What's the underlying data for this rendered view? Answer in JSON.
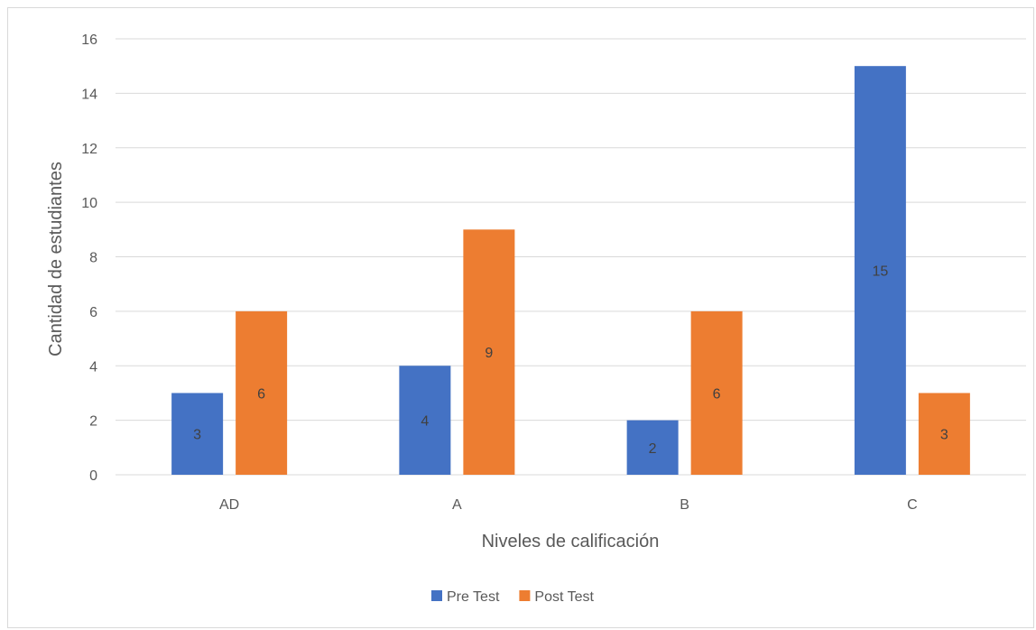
{
  "chart_data": {
    "type": "bar",
    "categories": [
      "AD",
      "A",
      "B",
      "C"
    ],
    "series": [
      {
        "name": "Pre Test",
        "values": [
          3,
          4,
          2,
          15
        ],
        "color": "#4472c4"
      },
      {
        "name": "Post Test",
        "values": [
          6,
          9,
          6,
          3
        ],
        "color": "#ed7d31"
      }
    ],
    "xlabel": "Niveles de calificación",
    "ylabel": "Cantidad de estudiantes",
    "ylim": [
      0,
      16
    ],
    "yticks": [
      0,
      2,
      4,
      6,
      8,
      10,
      12,
      14,
      16
    ],
    "grid": true,
    "legend_position": "bottom",
    "data_labels": true,
    "gridline_color": "#d9d9d9",
    "label_color": "#595959"
  }
}
